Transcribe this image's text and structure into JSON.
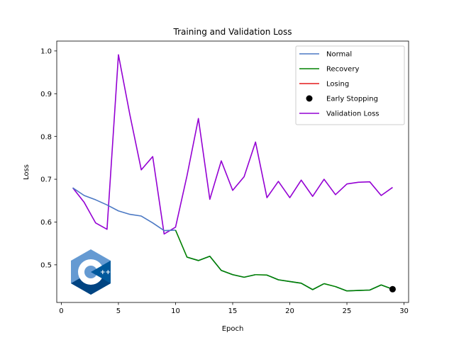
{
  "chart_data": {
    "type": "line",
    "title": "Training and Validation Loss",
    "xlabel": "Epoch",
    "ylabel": "Loss",
    "xlim": [
      -0.4,
      30.4
    ],
    "ylim": [
      0.412,
      1.023
    ],
    "xticks": [
      0,
      5,
      10,
      15,
      20,
      25,
      30
    ],
    "yticks": [
      0.5,
      0.6,
      0.7,
      0.8,
      0.9,
      1.0
    ],
    "xtick_labels": [
      "0",
      "5",
      "10",
      "15",
      "20",
      "25",
      "30"
    ],
    "ytick_labels": [
      "0.5",
      "0.6",
      "0.7",
      "0.8",
      "0.9",
      "1.0"
    ],
    "grid": false,
    "legend_position": "top-right",
    "series": [
      {
        "name": "Normal",
        "color": "#4c79c4",
        "x": [
          1,
          2,
          3,
          4,
          5,
          6,
          7,
          8,
          9,
          10,
          10,
          11,
          12,
          13,
          14,
          15,
          16,
          17,
          17,
          18,
          19,
          20,
          21,
          22,
          23,
          23,
          24,
          25,
          26,
          27,
          28,
          29
        ],
        "y": [
          0.68,
          0.662,
          0.652,
          0.64,
          0.626,
          0.618,
          0.614,
          0.598,
          0.58,
          0.581,
          null,
          0.518,
          0.51,
          0.52,
          0.487,
          0.477,
          0.471,
          0.477,
          null,
          0.476,
          0.465,
          0.461,
          0.457,
          0.442,
          0.456,
          null,
          0.449,
          0.439,
          0.44,
          0.441,
          0.453,
          0.443
        ]
      },
      {
        "name": "Recovery",
        "color": "#008000",
        "segments": [
          {
            "x": [
              10,
              11,
              12,
              13,
              14,
              15,
              16,
              17
            ],
            "y": [
              0.581,
              0.518,
              0.51,
              0.52,
              0.487,
              0.477,
              0.471,
              0.477
            ]
          },
          {
            "x": [
              17,
              18,
              19,
              20,
              21,
              22,
              23
            ],
            "y": [
              0.477,
              0.476,
              0.465,
              0.461,
              0.457,
              0.442,
              0.456
            ]
          },
          {
            "x": [
              23,
              24,
              25,
              26,
              27,
              28,
              29
            ],
            "y": [
              0.456,
              0.449,
              0.439,
              0.44,
              0.441,
              0.453,
              0.443
            ]
          }
        ],
        "x": [
          10,
          11,
          12,
          13,
          14,
          15,
          16,
          17,
          18,
          19,
          20,
          21,
          22,
          23,
          24,
          25,
          26,
          27,
          28,
          29
        ],
        "y": [
          0.581,
          0.518,
          0.51,
          0.52,
          0.487,
          0.477,
          0.471,
          0.477,
          0.476,
          0.465,
          0.461,
          0.457,
          0.442,
          0.456,
          0.449,
          0.439,
          0.44,
          0.441,
          0.453,
          0.443
        ]
      },
      {
        "name": "Losing",
        "color": "#e41a1c",
        "x": [],
        "y": []
      },
      {
        "name": "Early Stopping",
        "color": "#000000",
        "marker": "circle",
        "x": [
          29
        ],
        "y": [
          0.443
        ]
      },
      {
        "name": "Validation Loss",
        "color": "#9400d3",
        "x": [
          1,
          2,
          3,
          4,
          5,
          6,
          7,
          8,
          9,
          10,
          11,
          12,
          13,
          14,
          15,
          16,
          17,
          18,
          19,
          20,
          21,
          22,
          23,
          24,
          25,
          26,
          27,
          28,
          29
        ],
        "y": [
          0.68,
          0.646,
          0.598,
          0.583,
          0.991,
          0.851,
          0.722,
          0.753,
          0.572,
          0.588,
          0.708,
          0.842,
          0.653,
          0.743,
          0.674,
          0.706,
          0.787,
          0.657,
          0.695,
          0.657,
          0.698,
          0.66,
          0.7,
          0.664,
          0.689,
          0.693,
          0.694,
          0.662,
          0.681
        ]
      }
    ],
    "logo": {
      "name": "cpp-logo",
      "text": "C++"
    }
  }
}
